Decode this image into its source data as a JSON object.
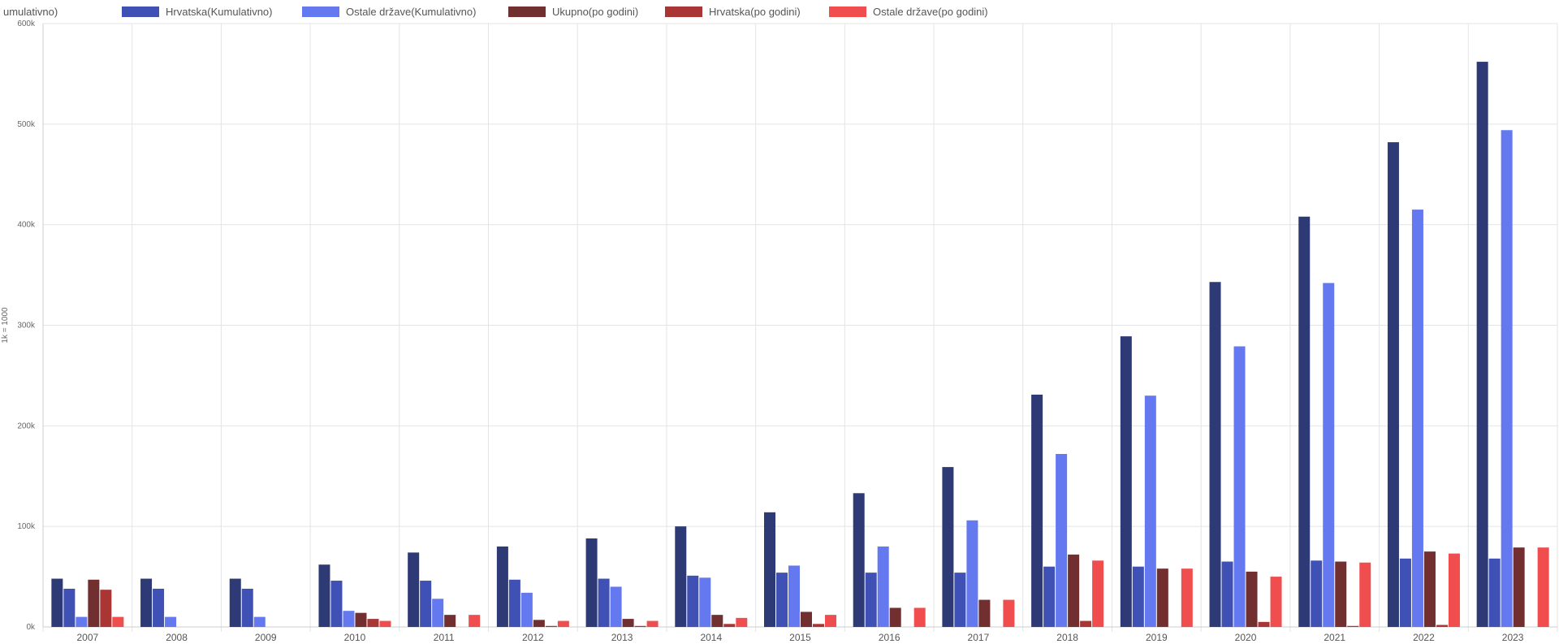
{
  "chart_data": {
    "type": "bar",
    "ylabel": "1k = 1000",
    "xlabel": "",
    "ylim": [
      0,
      600000
    ],
    "y_ticks": [
      {
        "value": 0,
        "label": "0k"
      },
      {
        "value": 100000,
        "label": "100k"
      },
      {
        "value": 200000,
        "label": "200k"
      },
      {
        "value": 300000,
        "label": "300k"
      },
      {
        "value": 400000,
        "label": "400k"
      },
      {
        "value": 500000,
        "label": "500k"
      },
      {
        "value": 600000,
        "label": "600k"
      }
    ],
    "grid": true,
    "legend_position": "top",
    "categories": [
      "2007",
      "2008",
      "2009",
      "2010",
      "2011",
      "2012",
      "2013",
      "2014",
      "2015",
      "2016",
      "2017",
      "2018",
      "2019",
      "2020",
      "2021",
      "2022",
      "2023"
    ],
    "series": [
      {
        "name": "Ukupno(Kumulativno)",
        "legend_label": "umulativno)",
        "color": "#2e3a75",
        "values": [
          48000,
          48000,
          48000,
          62000,
          74000,
          80000,
          88000,
          100000,
          114000,
          133000,
          159000,
          231000,
          289000,
          343000,
          408000,
          482000,
          562000
        ]
      },
      {
        "name": "Hrvatska(Kumulativno)",
        "legend_label": "Hrvatska(Kumulativno)",
        "color": "#3f51b5",
        "values": [
          38000,
          38000,
          38000,
          46000,
          46000,
          47000,
          48000,
          51000,
          54000,
          54000,
          54000,
          60000,
          60000,
          65000,
          66000,
          68000,
          68000
        ]
      },
      {
        "name": "Ostale države(Kumulativno)",
        "legend_label": "Ostale države(Kumulativno)",
        "color": "#6479f0",
        "values": [
          10000,
          10000,
          10000,
          16000,
          28000,
          34000,
          40000,
          49000,
          61000,
          80000,
          106000,
          172000,
          230000,
          279000,
          342000,
          415000,
          494000
        ]
      },
      {
        "name": "Ukupno(po godini)",
        "legend_label": "Ukupno(po godini)",
        "color": "#722f2f",
        "values": [
          47000,
          0,
          0,
          14000,
          12000,
          7000,
          8000,
          12000,
          15000,
          19000,
          27000,
          72000,
          58000,
          55000,
          65000,
          75000,
          79000
        ]
      },
      {
        "name": "Hrvatska(po godini)",
        "legend_label": "Hrvatska(po godini)",
        "color": "#a93535",
        "values": [
          37000,
          0,
          0,
          8000,
          0,
          1000,
          1000,
          3000,
          3000,
          0,
          0,
          6000,
          0,
          5000,
          1000,
          2000,
          0
        ]
      },
      {
        "name": "Ostale države(po godini)",
        "legend_label": "Ostale države(po godini)",
        "color": "#f04e4e",
        "values": [
          10000,
          0,
          0,
          6000,
          12000,
          6000,
          6000,
          9000,
          12000,
          19000,
          27000,
          66000,
          58000,
          50000,
          64000,
          73000,
          79000
        ]
      }
    ]
  }
}
